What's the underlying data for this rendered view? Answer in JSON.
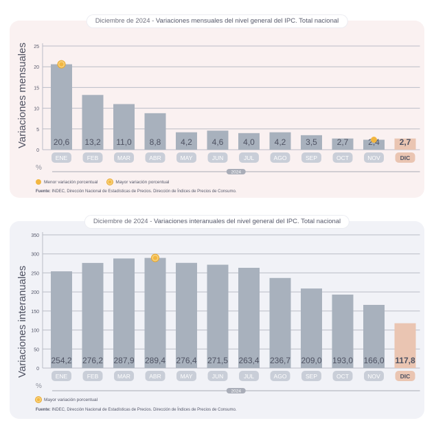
{
  "chart_data": [
    {
      "type": "bar",
      "title_prefix": "Diciembre de 2024 - ",
      "title_main": "Variaciones mensuales del nivel general del IPC. Total nacional",
      "ylabel": "Variaciones mensuales",
      "unit": "%",
      "year": "2024",
      "categories": [
        "ENE",
        "FEB",
        "MAR",
        "ABR",
        "MAY",
        "JUN",
        "JUL",
        "AGO",
        "SEP",
        "OCT",
        "NOV",
        "DIC"
      ],
      "values": [
        20.6,
        13.2,
        11.0,
        8.8,
        4.2,
        4.6,
        4.0,
        4.2,
        3.5,
        2.7,
        2.4,
        2.7
      ],
      "value_labels": [
        "20,6",
        "13,2",
        "11,0",
        "8,8",
        "4,2",
        "4,6",
        "4,0",
        "4,2",
        "3,5",
        "2,7",
        "2,4",
        "2,7"
      ],
      "yticks": [
        0,
        5,
        10,
        15,
        20,
        25
      ],
      "ylim": [
        0,
        25
      ],
      "highlight_index": 11,
      "markers": [
        {
          "index": 0,
          "kind": "max"
        },
        {
          "index": 10,
          "kind": "min"
        }
      ],
      "legend": [
        {
          "kind": "min",
          "label": "Menor variación porcentual"
        },
        {
          "kind": "max",
          "label": "Mayor variación porcentual"
        }
      ],
      "source_label": "Fuente:",
      "source_text": "INDEC, Dirección Nacional de Estadísticas de Precios. Dirección de Índices de Precios de Consumo."
    },
    {
      "type": "bar",
      "title_prefix": "Diciembre de 2024 - ",
      "title_main": "Variaciones interanuales del nivel general del IPC. Total nacional",
      "ylabel": "Variaciones interanuales",
      "unit": "%",
      "year": "2024",
      "categories": [
        "ENE",
        "FEB",
        "MAR",
        "ABR",
        "MAY",
        "JUN",
        "JUL",
        "AGO",
        "SEP",
        "OCT",
        "NOV",
        "DIC"
      ],
      "values": [
        254.2,
        276.2,
        287.9,
        289.4,
        276.4,
        271.5,
        263.4,
        236.7,
        209.0,
        193.0,
        166.0,
        117.8
      ],
      "value_labels": [
        "254,2",
        "276,2",
        "287,9",
        "289,4",
        "276,4",
        "271,5",
        "263,4",
        "236,7",
        "209,0",
        "193,0",
        "166,0",
        "117,8"
      ],
      "yticks": [
        0,
        50,
        100,
        150,
        200,
        250,
        300,
        350
      ],
      "ylim": [
        0,
        350
      ],
      "highlight_index": 11,
      "markers": [
        {
          "index": 3,
          "kind": "max"
        }
      ],
      "legend": [
        {
          "kind": "max",
          "label": "Mayor variación porcentual"
        }
      ],
      "source_label": "Fuente:",
      "source_text": "INDEC, Dirección Nacional de Estadísticas de Precios. Dirección de Índices de Precios de Consumo."
    }
  ],
  "colors": {
    "bar": "#a8b1bd",
    "bar_highlight": "#eac5b2",
    "month_pill": "#c9ced8",
    "month_pill_highlight": "#eac5b2",
    "value_text": "#4e5262",
    "grid": "#b9bcc6",
    "marker": "#f2b640"
  }
}
